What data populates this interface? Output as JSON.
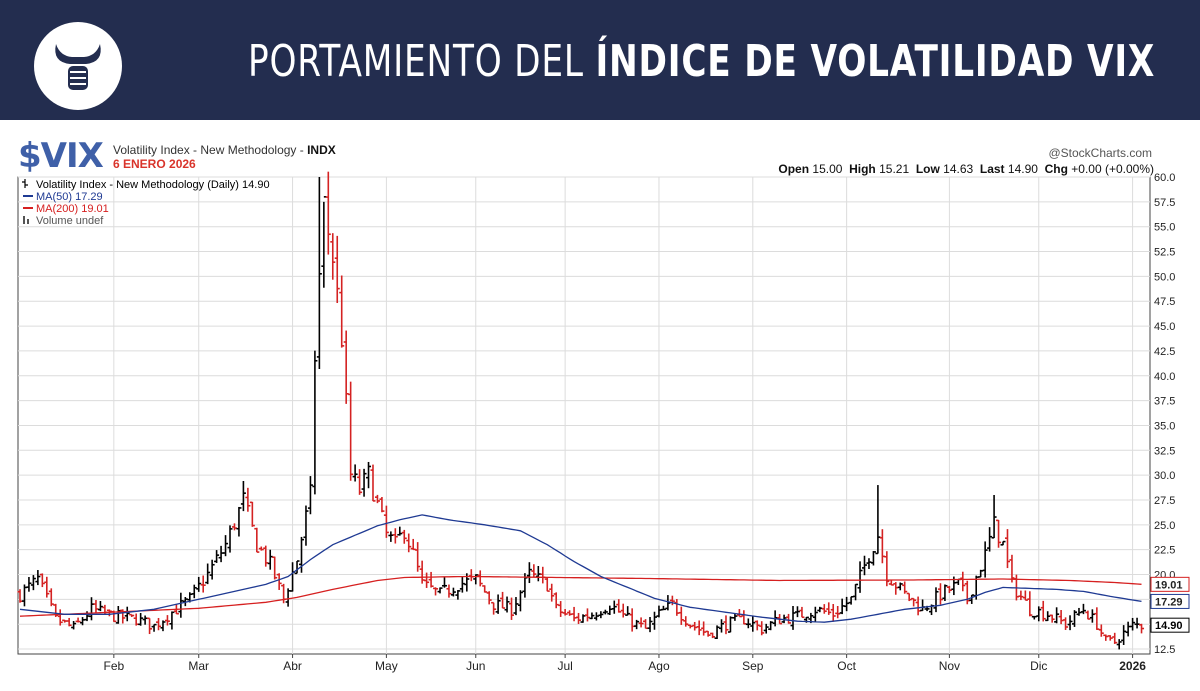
{
  "banner": {
    "title_light": "PORTAMIENTO DEL",
    "title_bold": "ÍNDICE DE VOLATILIDAD VIX",
    "logo_icon": "bull-fist-logo-icon",
    "bg_color": "#232d4f"
  },
  "header": {
    "ticker": "$VIX",
    "name": "Volatility Index - New Methodology - ",
    "exchange": "INDX",
    "date": "6 ENERO 2026",
    "brand": "@StockCharts.com",
    "quote": {
      "open_label": "Open",
      "open": "15.00",
      "high_label": "High",
      "high": "15.21",
      "low_label": "Low",
      "low": "14.63",
      "last_label": "Last",
      "last": "14.90",
      "chg_label": "Chg",
      "chg": "+0.00 (+0.00%)"
    }
  },
  "chart_data": {
    "type": "ohlc",
    "legend": [
      {
        "text": "Volatility Index - New Methodology (Daily) 14.90",
        "color": "#000000",
        "icon": "ohlc-bar-icon"
      },
      {
        "text": "MA(50) 17.29",
        "color": "#1f3a93",
        "icon": "line-icon"
      },
      {
        "text": "MA(200) 19.01",
        "color": "#d62020",
        "icon": "line-icon"
      },
      {
        "text": "Volume undef",
        "color": "#555555",
        "icon": "volume-bar-icon"
      }
    ],
    "y_ticks": [
      12.5,
      15.0,
      17.5,
      20.0,
      22.5,
      25.0,
      27.5,
      30.0,
      32.5,
      35.0,
      37.5,
      40.0,
      42.5,
      45.0,
      47.5,
      50.0,
      52.5,
      55.0,
      57.5,
      60.0
    ],
    "ylim": [
      12.0,
      60.0
    ],
    "x_labels": [
      {
        "label": "Feb",
        "day": 21
      },
      {
        "label": "Mar",
        "day": 40
      },
      {
        "label": "Abr",
        "day": 61
      },
      {
        "label": "May",
        "day": 82
      },
      {
        "label": "Jun",
        "day": 102
      },
      {
        "label": "Jul",
        "day": 122
      },
      {
        "label": "Ago",
        "day": 143
      },
      {
        "label": "Sep",
        "day": 164
      },
      {
        "label": "Oct",
        "day": 185
      },
      {
        "label": "Nov",
        "day": 208
      },
      {
        "label": "Dic",
        "day": 228
      },
      {
        "label": "2026",
        "day": 249,
        "bold": true
      }
    ],
    "x_range": [
      0,
      252
    ],
    "price_path": [
      [
        0,
        18
      ],
      [
        4,
        19.5
      ],
      [
        8,
        15.5
      ],
      [
        12,
        14.6
      ],
      [
        16,
        16.5
      ],
      [
        21,
        15.8
      ],
      [
        26,
        15.5
      ],
      [
        30,
        14.8
      ],
      [
        34,
        16.2
      ],
      [
        38,
        17.5
      ],
      [
        42,
        20
      ],
      [
        46,
        23
      ],
      [
        50,
        27.5
      ],
      [
        53,
        23
      ],
      [
        56,
        21
      ],
      [
        59,
        17.5
      ],
      [
        62,
        21.5
      ],
      [
        65,
        28
      ],
      [
        66,
        42
      ],
      [
        67,
        50
      ],
      [
        68,
        57
      ],
      [
        70,
        52
      ],
      [
        72,
        44
      ],
      [
        74,
        30
      ],
      [
        76,
        28.5
      ],
      [
        78,
        30
      ],
      [
        80,
        27
      ],
      [
        82,
        24
      ],
      [
        84,
        23
      ],
      [
        86,
        24.5
      ],
      [
        88,
        22
      ],
      [
        90,
        19
      ],
      [
        94,
        18
      ],
      [
        98,
        19
      ],
      [
        102,
        19.5
      ],
      [
        106,
        17
      ],
      [
        110,
        16.5
      ],
      [
        114,
        20
      ],
      [
        118,
        19
      ],
      [
        120,
        16.5
      ],
      [
        124,
        15.5
      ],
      [
        128,
        16
      ],
      [
        132,
        17
      ],
      [
        136,
        15.5
      ],
      [
        140,
        14.5
      ],
      [
        143,
        16
      ],
      [
        146,
        17
      ],
      [
        150,
        15
      ],
      [
        154,
        14
      ],
      [
        158,
        15
      ],
      [
        162,
        15.5
      ],
      [
        166,
        14.5
      ],
      [
        170,
        15.5
      ],
      [
        174,
        15.8
      ],
      [
        178,
        16.5
      ],
      [
        182,
        16
      ],
      [
        186,
        17.5
      ],
      [
        190,
        22
      ],
      [
        192,
        24
      ],
      [
        194,
        20
      ],
      [
        198,
        18
      ],
      [
        202,
        16.5
      ],
      [
        206,
        18
      ],
      [
        210,
        19
      ],
      [
        212,
        17.5
      ],
      [
        216,
        22
      ],
      [
        218,
        25
      ],
      [
        220,
        23
      ],
      [
        222,
        19
      ],
      [
        226,
        16.5
      ],
      [
        230,
        16
      ],
      [
        234,
        15
      ],
      [
        238,
        16.5
      ],
      [
        241,
        15
      ],
      [
        243,
        13.3
      ],
      [
        245,
        13.2
      ],
      [
        247,
        14.1
      ],
      [
        249,
        14.9
      ],
      [
        251,
        14.9
      ]
    ],
    "spikes": [
      {
        "day": 67,
        "high": 60
      },
      {
        "day": 68,
        "high": 57.5
      },
      {
        "day": 192,
        "high": 29
      },
      {
        "day": 218,
        "high": 28
      }
    ],
    "ma50": [
      [
        0,
        16.5
      ],
      [
        10,
        16
      ],
      [
        20,
        16
      ],
      [
        30,
        16.5
      ],
      [
        40,
        17.5
      ],
      [
        50,
        18.5
      ],
      [
        55,
        19
      ],
      [
        60,
        19.8
      ],
      [
        65,
        21.5
      ],
      [
        70,
        23
      ],
      [
        80,
        24.9
      ],
      [
        85,
        25.5
      ],
      [
        90,
        26
      ],
      [
        96,
        25.5
      ],
      [
        104,
        25
      ],
      [
        112,
        24.4
      ],
      [
        118,
        23
      ],
      [
        124,
        21.3
      ],
      [
        130,
        19.8
      ],
      [
        136,
        18.7
      ],
      [
        142,
        17.6
      ],
      [
        150,
        16.7
      ],
      [
        158,
        16.2
      ],
      [
        166,
        15.7
      ],
      [
        174,
        15.3
      ],
      [
        180,
        15.2
      ],
      [
        186,
        15.5
      ],
      [
        192,
        16
      ],
      [
        198,
        16.5
      ],
      [
        206,
        16.9
      ],
      [
        212,
        17.5
      ],
      [
        216,
        18.2
      ],
      [
        220,
        18.7
      ],
      [
        226,
        18.6
      ],
      [
        232,
        18.5
      ],
      [
        238,
        18.3
      ],
      [
        244,
        17.8
      ],
      [
        251,
        17.29
      ]
    ],
    "ma200": [
      [
        0,
        15.8
      ],
      [
        20,
        16.2
      ],
      [
        40,
        16.6
      ],
      [
        55,
        17.2
      ],
      [
        62,
        17.7
      ],
      [
        70,
        18.5
      ],
      [
        80,
        19.4
      ],
      [
        86,
        19.7
      ],
      [
        100,
        19.8
      ],
      [
        140,
        19.6
      ],
      [
        170,
        19.4
      ],
      [
        200,
        19.45
      ],
      [
        220,
        19.55
      ],
      [
        235,
        19.4
      ],
      [
        245,
        19.2
      ],
      [
        251,
        19.01
      ]
    ],
    "last_label": "14.90",
    "ma50_label": "17.29",
    "ma200_label": "19.01"
  }
}
